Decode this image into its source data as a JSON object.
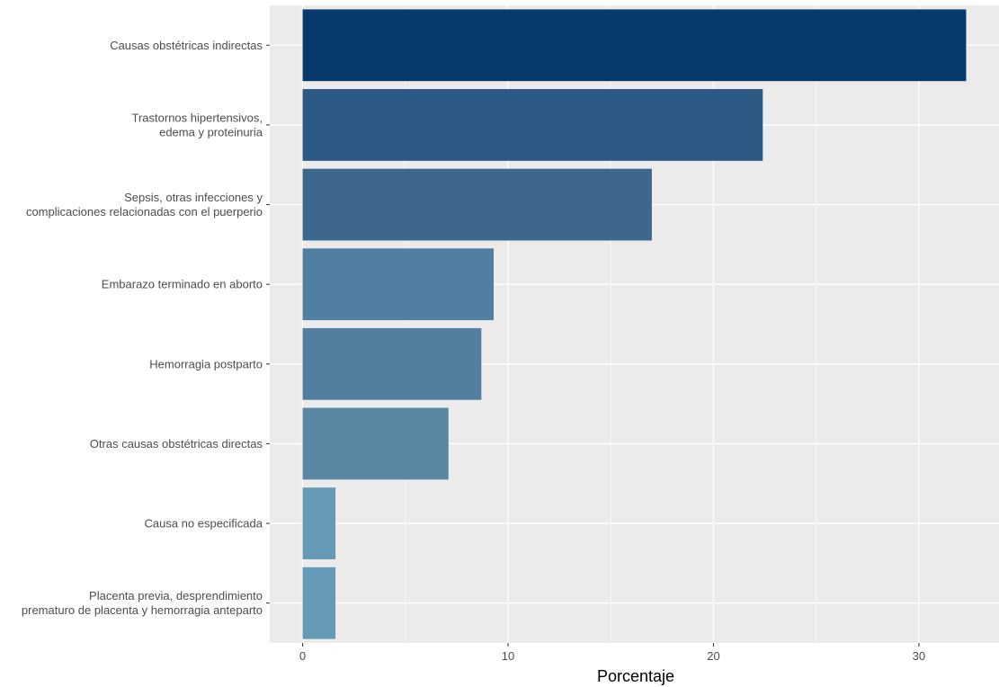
{
  "chart_data": {
    "type": "bar",
    "orientation": "horizontal",
    "categories": [
      [
        "Causas obstétricas indirectas"
      ],
      [
        "Trastornos hipertensivos,",
        "edema y proteinuria"
      ],
      [
        "Sepsis, otras infecciones y",
        "complicaciones relacionadas con el puerperio"
      ],
      [
        "Embarazo terminado en aborto"
      ],
      [
        "Hemorragia postparto"
      ],
      [
        "Otras causas obstétricas directas"
      ],
      [
        "Causa no especificada"
      ],
      [
        "Placenta previa, desprendimiento",
        "prematuro de placenta y hemorragia anteparto"
      ]
    ],
    "values": [
      32.3,
      22.4,
      17.0,
      9.3,
      8.7,
      7.1,
      1.6,
      1.6
    ],
    "colors": [
      "#08396b",
      "#2c5884",
      "#3d678d",
      "#507fa1",
      "#527fa0",
      "#5986a3",
      "#6599b5",
      "#6599b5"
    ],
    "xlabel": "Porcentaje",
    "ylabel": "",
    "title": "",
    "xlim": [
      -1.6,
      33.9
    ],
    "xticks": [
      0,
      10,
      20,
      30
    ],
    "grid": true,
    "background": "#ebebeb",
    "gridColor": "#ffffff"
  }
}
